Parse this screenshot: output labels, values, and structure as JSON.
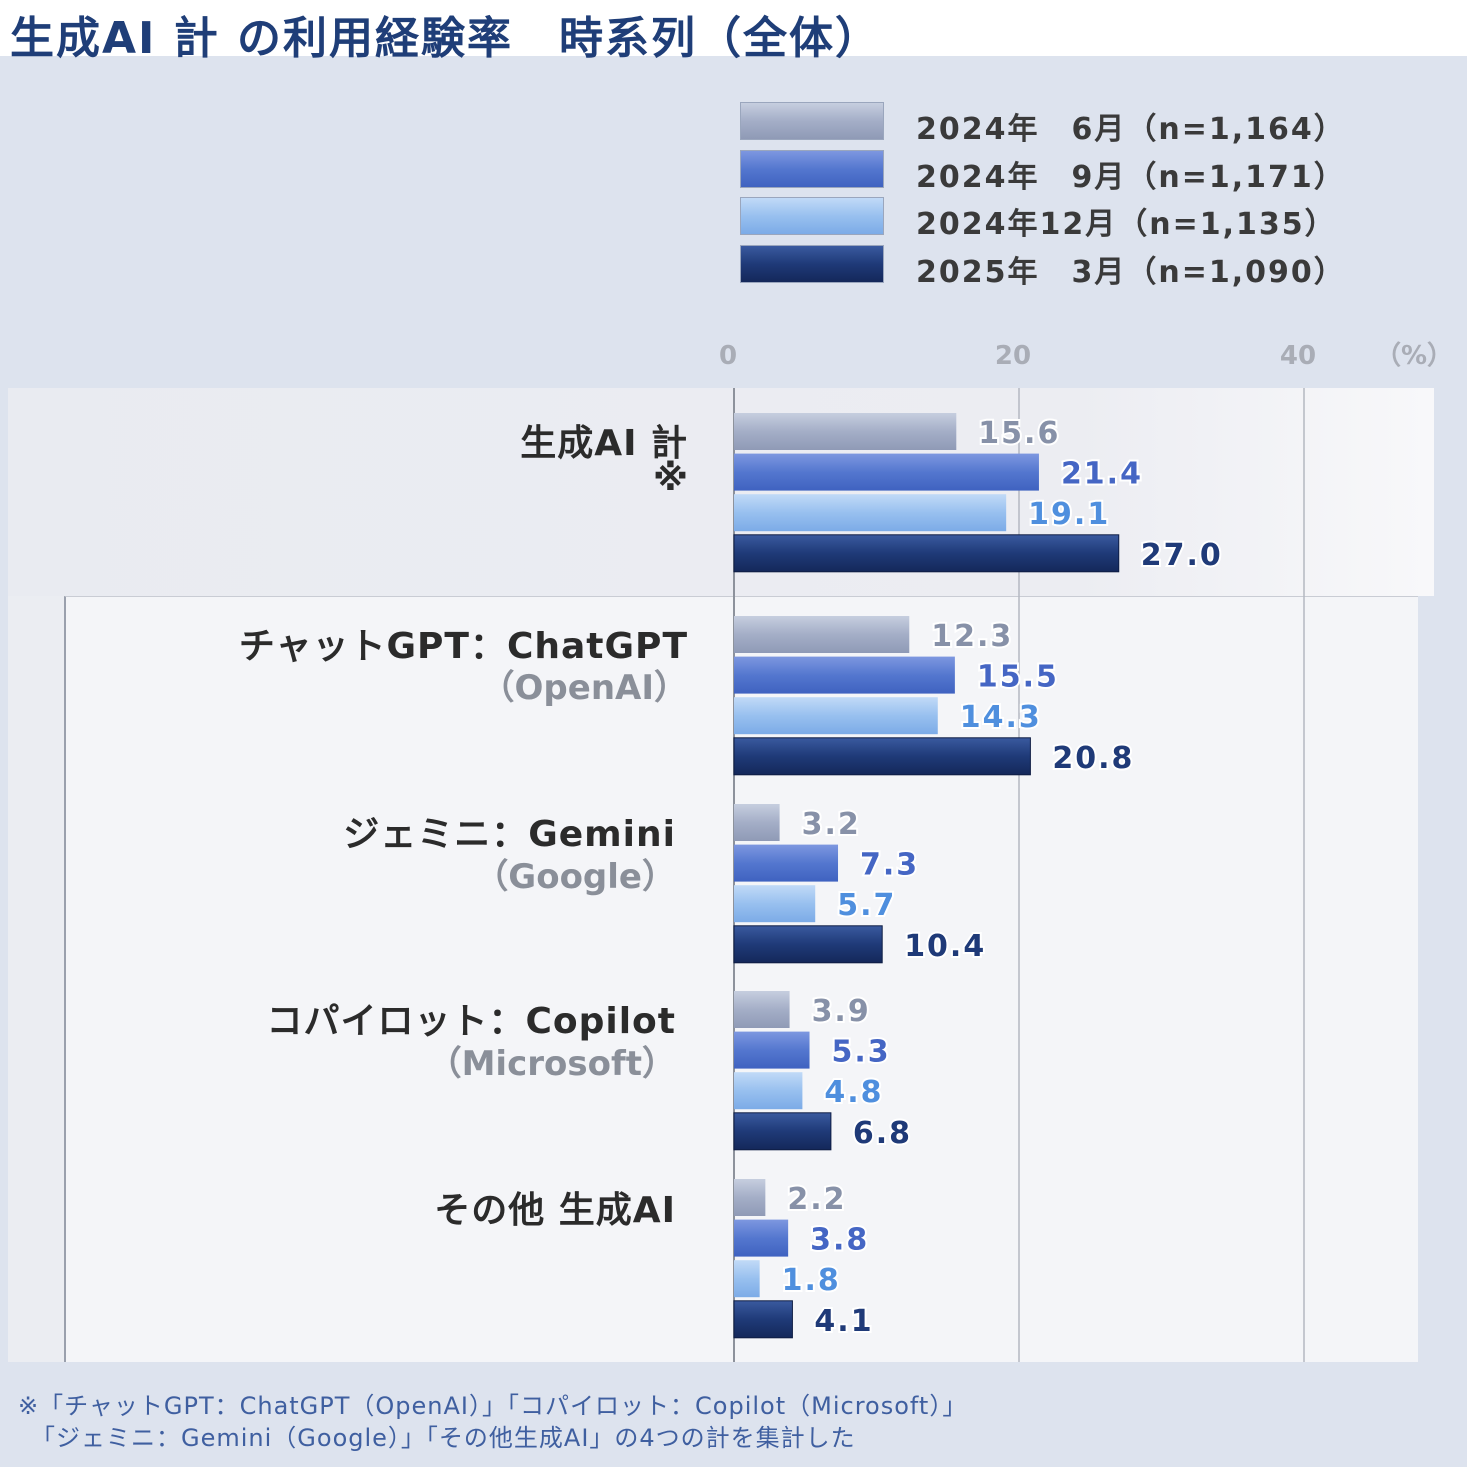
{
  "header": {
    "title": "生成AI 計 の利用経験率　時系列（全体）"
  },
  "chart_data": {
    "type": "bar",
    "orientation": "horizontal",
    "title": "生成AI 計 の利用経験率　時系列（全体）",
    "unit": "（%）",
    "xlim": [
      0,
      50
    ],
    "xticks": [
      {
        "value": 0,
        "label": "0"
      },
      {
        "value": 20,
        "label": "20"
      },
      {
        "value": 40,
        "label": "40"
      }
    ],
    "legend_position": "top-right",
    "categories": [
      {
        "label": "生成AI 計",
        "sub": "※"
      },
      {
        "label": "チャットGPT：ChatGPT",
        "sub": "（OpenAI）"
      },
      {
        "label": "ジェミニ：Gemini",
        "sub": "（Google）"
      },
      {
        "label": "コパイロット：Copilot",
        "sub": "（Microsoft）"
      },
      {
        "label": "その他 生成AI",
        "sub": ""
      }
    ],
    "series": [
      {
        "name": "2024年　6月（n=1,164）",
        "color": "#a4aec7",
        "label_color": "#8791a8",
        "values": [
          15.6,
          12.3,
          3.2,
          3.9,
          2.2
        ]
      },
      {
        "name": "2024年　9月（n=1,171）",
        "color": "#5477cf",
        "label_color": "#4566c4",
        "values": [
          21.4,
          15.5,
          7.3,
          5.3,
          3.8
        ]
      },
      {
        "name": "2024年12月（n=1,135）",
        "color": "#98c0ef",
        "label_color": "#4f8fde",
        "values": [
          19.1,
          14.3,
          5.7,
          4.8,
          1.8
        ]
      },
      {
        "name": "2025年　3月（n=1,090）",
        "color": "#1f3a78",
        "label_color": "#1f3a78",
        "values": [
          27.0,
          20.8,
          10.4,
          6.8,
          4.1
        ]
      }
    ]
  },
  "footnote": {
    "line1": "※「チャットGPT：ChatGPT（OpenAI）」「コパイロット：Copilot（Microsoft）」",
    "line2": "　「ジェミニ：Gemini（Google）」「その他生成AI」の4つの計を集計した"
  }
}
